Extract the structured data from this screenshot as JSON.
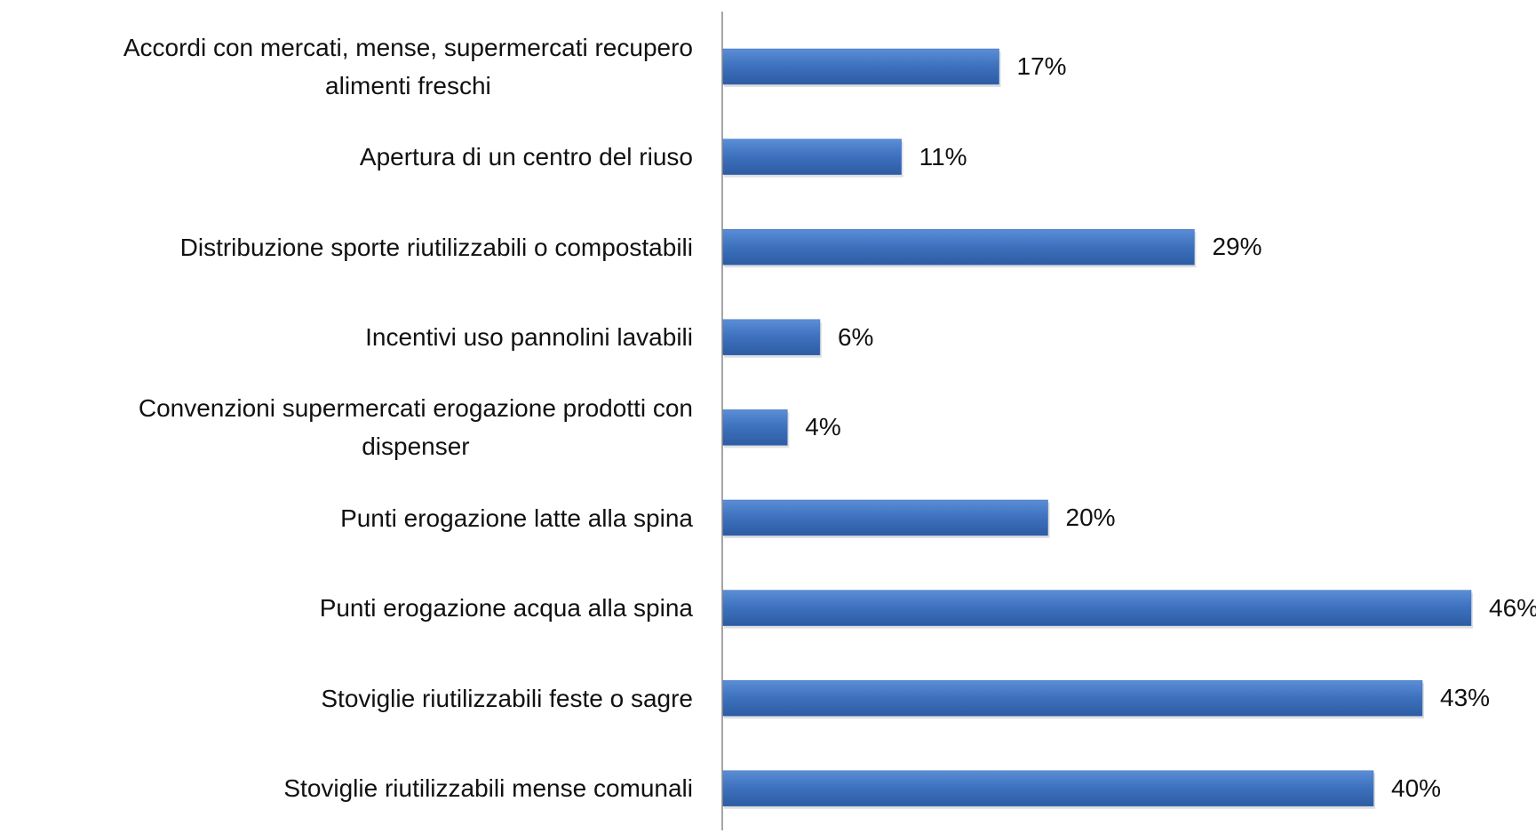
{
  "chart_data": {
    "type": "bar",
    "orientation": "horizontal",
    "color": "#3d70bd",
    "categories": [
      "Accordi con mercati, mense, supermercati recupero\nalimenti freschi",
      "Apertura di un centro del riuso",
      "Distribuzione sporte riutilizzabili o compostabili",
      "Incentivi uso pannolini lavabili",
      "Convenzioni supermercati erogazione prodotti con\ndispenser",
      "Punti erogazione latte alla spina",
      "Punti erogazione acqua alla spina",
      "Stoviglie riutilizzabili feste o sagre",
      "Stoviglie riutilizzabili mense comunali"
    ],
    "values": [
      17,
      11,
      29,
      6,
      4,
      20,
      46,
      43,
      40
    ],
    "value_labels": [
      "17%",
      "11%",
      "29%",
      "6%",
      "4%",
      "20%",
      "46%",
      "43%",
      "40%"
    ]
  }
}
